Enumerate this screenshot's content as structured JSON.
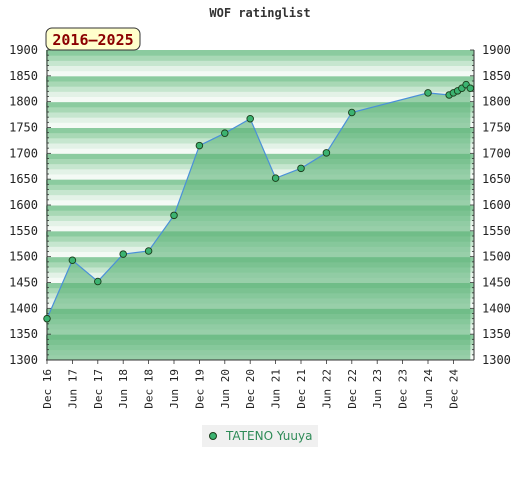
{
  "chart_data": {
    "type": "area",
    "title": "WOF ratinglist",
    "badge": "2016–2025",
    "xlabel": "",
    "ylabel": "",
    "ylim": [
      1300,
      1900
    ],
    "yticks": [
      1300,
      1350,
      1400,
      1450,
      1500,
      1550,
      1600,
      1650,
      1700,
      1750,
      1800,
      1850,
      1900
    ],
    "xticks": [
      "Dec 16",
      "Jun 17",
      "Dec 17",
      "Jun 18",
      "Dec 18",
      "Jun 19",
      "Dec 19",
      "Jun 20",
      "Dec 20",
      "Jun 21",
      "Dec 21",
      "Jun 22",
      "Dec 22",
      "Jun 23",
      "Dec 23",
      "Jun 24",
      "Dec 24"
    ],
    "legend": {
      "position": "bottom-center"
    },
    "series": [
      {
        "name": "TATENO Yuuya",
        "color": "#2e8b57",
        "points": [
          {
            "x": "Dec 16",
            "y": 1380
          },
          {
            "x": "Jun 17",
            "y": 1493
          },
          {
            "x": "Dec 17",
            "y": 1452
          },
          {
            "x": "Jun 18",
            "y": 1505
          },
          {
            "x": "Dec 18",
            "y": 1511
          },
          {
            "x": "Jun 19",
            "y": 1580
          },
          {
            "x": "Dec 19",
            "y": 1715
          },
          {
            "x": "Jun 20",
            "y": 1739
          },
          {
            "x": "Dec 20",
            "y": 1767
          },
          {
            "x": "Jun 21",
            "y": 1652
          },
          {
            "x": "Dec 21",
            "y": 1671
          },
          {
            "x": "Jun 22",
            "y": 1701
          },
          {
            "x": "Dec 22",
            "y": 1779
          },
          {
            "x": "Jun 24",
            "y": 1817
          },
          {
            "x": "Nov 24",
            "y": 1813
          },
          {
            "x": "Dec 24",
            "y": 1817
          },
          {
            "x": "Jan 25",
            "y": 1821
          },
          {
            "x": "Feb 25",
            "y": 1826
          },
          {
            "x": "Mar 25",
            "y": 1833
          },
          {
            "x": "Apr 25",
            "y": 1826
          }
        ]
      }
    ]
  }
}
